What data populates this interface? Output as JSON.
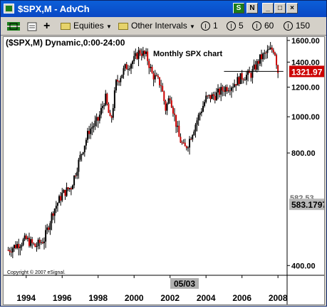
{
  "window": {
    "title": "$SPX,M - AdvCh",
    "controls": [
      "S",
      "N",
      "_",
      "□",
      "×"
    ]
  },
  "toolbar": {
    "equities_label": "Equities",
    "intervals_label": "Other Intervals",
    "interval_buttons": [
      {
        "icon": "I",
        "value": "1"
      },
      {
        "icon": "I",
        "value": "5"
      },
      {
        "icon": "I",
        "value": "60"
      },
      {
        "icon": "I",
        "value": "150"
      }
    ]
  },
  "chart": {
    "header": "($SPX,M) Dynamic,0:00-24:00",
    "title_annotation": "Monthly SPX chart",
    "copyright": "Copyright © 2007 eSignal.",
    "cursor_date": "05/03",
    "last_price_label": "1321.97",
    "low_price_label": "583.1797",
    "hidden_label": "582.53"
  },
  "chart_data": {
    "type": "candlestick",
    "title": "Monthly SPX chart",
    "x_ticks": [
      "1994",
      "1996",
      "1998",
      "2000",
      "2002",
      "2004",
      "2006",
      "2008"
    ],
    "y_ticks": [
      "1600.00",
      "1400.00",
      "1200.00",
      "1000.00",
      "800.00",
      "400.00"
    ],
    "y_scale": "log",
    "ylim": [
      380,
      1620
    ],
    "series": [
      {
        "name": "$SPX,M",
        "up_color": "#000000",
        "down_color": "#cc0000",
        "x": [
          1993.0,
          1993.5,
          1994.0,
          1994.5,
          1995.0,
          1995.5,
          1996.0,
          1996.5,
          1997.0,
          1997.5,
          1998.0,
          1998.4,
          1998.7,
          1999.0,
          1999.5,
          2000.0,
          2000.3,
          2000.7,
          2001.0,
          2001.5,
          2001.75,
          2002.0,
          2002.5,
          2002.8,
          2003.0,
          2003.2,
          2003.5,
          2004.0,
          2004.5,
          2005.0,
          2005.5,
          2006.0,
          2006.5,
          2007.0,
          2007.5,
          2007.8,
          2008.0
        ],
        "close": [
          440,
          455,
          470,
          450,
          470,
          560,
          620,
          650,
          780,
          920,
          980,
          1130,
          960,
          1230,
          1350,
          1420,
          1500,
          1450,
          1300,
          1220,
          1050,
          1140,
          880,
          820,
          850,
          900,
          980,
          1120,
          1140,
          1190,
          1220,
          1280,
          1300,
          1430,
          1500,
          1520,
          1322
        ]
      }
    ],
    "markers": [
      {
        "label": "1321.97",
        "y": 1321.97,
        "style": "red-box"
      },
      {
        "label": "583.1797",
        "y": 583.18,
        "style": "grey-box"
      }
    ],
    "horizontal_line": {
      "y": 1321.97,
      "x_start": 2005.0,
      "x_end": 2008.3
    }
  }
}
